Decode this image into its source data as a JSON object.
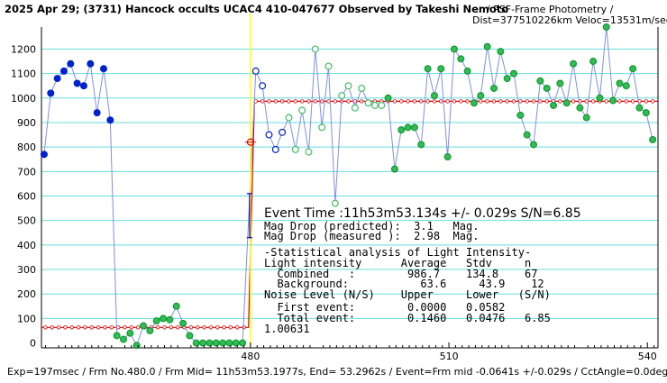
{
  "header": {
    "title": "2025 Apr 29; (3731) Hancock occults UCAC4 410-047677 Observed by Takeshi Nemoto",
    "method": "/ PSF-Frame Photometry /",
    "dist": "Dist=377510226km Veloc=13531m/sec"
  },
  "footer": {
    "info": "Exp=197msec / Frm No.480.0 / Frm Mid= 11h53m53.1977s, End= 53.2962s / Event=Frm mid -0.0641s +/-0.029s / CctAngle=0.0deg"
  },
  "stats": {
    "event_time": "Event Time :11h53m53.134s  +/- 0.029s  S/N=6.85",
    "mag_pred": "Mag Drop (predicted):  3.1   Mag.",
    "mag_meas": "Mag Drop (measured ):  2.98  Mag.",
    "sect": "-Statistical analysis of Light Intensity-",
    "hdr1": "Light intensity      Average   Stdv     n",
    "combined": "  Combined   :        986.7    134.8    67",
    "background": "  Background:           63.6     43.9    12",
    "hdr2": "Noise Level (N/S)    Upper     Lower   (S/N)",
    "first": "  First event:        0.0000   0.0582",
    "total": "  Total event:        0.1460   0.0476   6.85",
    "ratio": "1.00631"
  },
  "chart_data": {
    "type": "scatter",
    "title": "2025 Apr 29; (3731) Hancock occults UCAC4 410-047677 Observed by Takeshi Nemoto",
    "xlabel": "",
    "ylabel": "",
    "xlim": [
      448.4,
      541.6
    ],
    "ylim": [
      -20,
      1290
    ],
    "x_ticks": [
      480,
      510,
      540
    ],
    "y_ticks": [
      0,
      100,
      200,
      300,
      400,
      500,
      600,
      700,
      800,
      900,
      1000,
      1100,
      1200
    ],
    "grid": true,
    "colors": {
      "background": "#ffffff",
      "grid": "#66dddd",
      "connect_line": "#8090e0",
      "model": "#dd0000",
      "event_line": "#ffff00",
      "error_bar": "#0000cc",
      "navy_point": "#0022cc",
      "green_point": "#33bb55",
      "green_hollow": "#44bb66"
    },
    "event_x": 480.0,
    "error_bar": {
      "x": 480.0,
      "ylow": 430,
      "yhigh": 610
    },
    "model_line": [
      [
        448.4,
        63.6
      ],
      [
        479.7,
        63.6
      ],
      [
        480.6,
        986.7
      ],
      [
        541.6,
        986.7
      ]
    ],
    "series": [
      {
        "style": "navy-filled",
        "x": [
          448.8,
          449.8,
          450.8,
          451.8,
          452.8,
          453.8,
          454.8,
          455.8,
          456.8,
          457.8,
          458.8
        ],
        "y": [
          770,
          1020,
          1080,
          1110,
          1140,
          1060,
          1050,
          1140,
          940,
          1120,
          910
        ]
      },
      {
        "style": "green-filled",
        "x": [
          459.8,
          460.8,
          461.8,
          462.8,
          463.8,
          464.8,
          465.8,
          466.8,
          467.8,
          468.8,
          469.8,
          470.8,
          471.8,
          472.8,
          473.8,
          474.8,
          475.8,
          476.8,
          477.8,
          478.8
        ],
        "y": [
          30,
          15,
          40,
          -10,
          70,
          50,
          90,
          100,
          95,
          150,
          80,
          30,
          0,
          0,
          0,
          0,
          0,
          0,
          0,
          0
        ]
      },
      {
        "style": "navy-hollow",
        "x": [
          480.8,
          481.8,
          482.8,
          483.8,
          484.8
        ],
        "y": [
          1110,
          1050,
          850,
          790,
          860
        ]
      },
      {
        "style": "green-hollow",
        "x": [
          485.8,
          486.8,
          487.8,
          488.8,
          489.8,
          490.8,
          491.8,
          492.8,
          493.8,
          494.8,
          495.8,
          496.8,
          497.8,
          498.8,
          499.8
        ],
        "y": [
          920,
          790,
          950,
          780,
          1200,
          880,
          1130,
          570,
          1010,
          1050,
          960,
          1040,
          980,
          970,
          970
        ]
      },
      {
        "style": "green-filled",
        "x": [
          500.8,
          501.8,
          502.8,
          503.8,
          504.8,
          505.8,
          506.8,
          507.8,
          508.8,
          509.8,
          510.8,
          511.8,
          512.8,
          513.8,
          514.8,
          515.8,
          516.8,
          517.8,
          518.8,
          519.8,
          520.8,
          521.8,
          522.8,
          523.8,
          524.8,
          525.8,
          526.8,
          527.8,
          528.8,
          529.8,
          530.8,
          531.8,
          532.8,
          533.8,
          534.8,
          535.8,
          536.8,
          537.8,
          538.8,
          539.8,
          540.8
        ],
        "y": [
          1000,
          710,
          870,
          880,
          880,
          810,
          1120,
          1010,
          1120,
          760,
          1200,
          1160,
          1110,
          980,
          1010,
          1210,
          1040,
          1190,
          1080,
          1100,
          930,
          850,
          810,
          1070,
          1040,
          970,
          1060,
          980,
          1140,
          960,
          920,
          1150,
          1000,
          1290,
          990,
          1060,
          1050,
          1120,
          960,
          940,
          830
        ]
      }
    ]
  }
}
